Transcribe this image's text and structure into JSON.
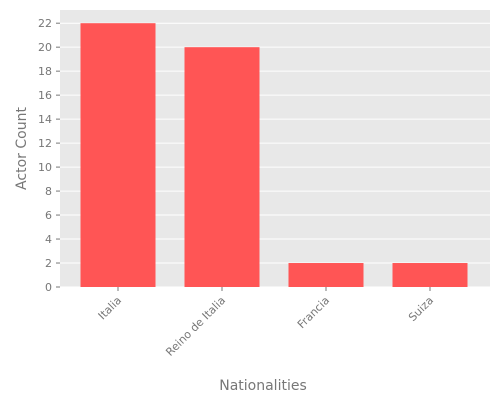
{
  "chart_data": {
    "type": "bar",
    "categories": [
      "Italia",
      "Reino de Italia",
      "Francia",
      "Suiza"
    ],
    "values": [
      22,
      20,
      2,
      2
    ],
    "title": "",
    "xlabel": "Nationalities",
    "ylabel": "Actor Count",
    "ylim": [
      0,
      23.1
    ],
    "yticks": [
      0,
      2,
      4,
      6,
      8,
      10,
      12,
      14,
      16,
      18,
      20,
      22
    ],
    "grid": true,
    "bar_color": "#ff5555",
    "background_color": "#e8e8e8",
    "grid_color": "#ffffff"
  }
}
